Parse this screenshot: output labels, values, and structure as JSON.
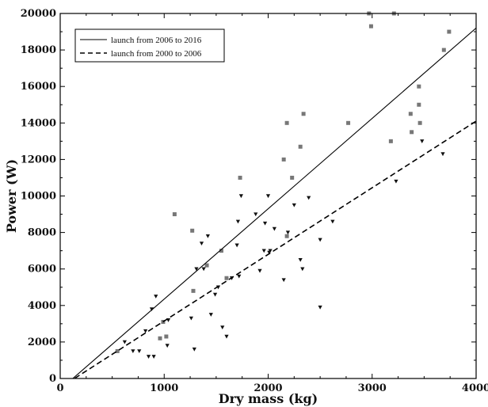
{
  "chart_data": {
    "type": "scatter",
    "title": "",
    "xlabel": "Dry mass (kg)",
    "ylabel": "Power (W)",
    "xlim": [
      0,
      4000
    ],
    "ylim": [
      0,
      20000
    ],
    "xticks": [
      0,
      1000,
      2000,
      3000,
      4000
    ],
    "yticks": [
      0,
      2000,
      4000,
      6000,
      8000,
      10000,
      12000,
      14000,
      16000,
      18000,
      20000
    ],
    "grid": false,
    "legend_position": "top-left",
    "series": [
      {
        "name": "launch from 2006 to 2016",
        "marker": "square",
        "color": "#777777",
        "points": [
          [
            550,
            1500
          ],
          [
            960,
            2200
          ],
          [
            990,
            3100
          ],
          [
            1020,
            2300
          ],
          [
            1100,
            9000
          ],
          [
            1270,
            8100
          ],
          [
            1280,
            4800
          ],
          [
            1410,
            6200
          ],
          [
            1550,
            7000
          ],
          [
            1600,
            5500
          ],
          [
            1730,
            11000
          ],
          [
            2150,
            12000
          ],
          [
            2180,
            7800
          ],
          [
            2180,
            14000
          ],
          [
            2230,
            11000
          ],
          [
            2310,
            12700
          ],
          [
            2340,
            14500
          ],
          [
            2770,
            14000
          ],
          [
            2970,
            20000
          ],
          [
            2990,
            19300
          ],
          [
            3180,
            13000
          ],
          [
            3210,
            20000
          ],
          [
            3370,
            14500
          ],
          [
            3380,
            13500
          ],
          [
            3450,
            16000
          ],
          [
            3450,
            15000
          ],
          [
            3460,
            14000
          ],
          [
            3690,
            18000
          ],
          [
            3740,
            19000
          ]
        ]
      },
      {
        "name": "launch from 2000 to 2006",
        "marker": "triangle-down",
        "color": "#111111",
        "points": [
          [
            620,
            2000
          ],
          [
            700,
            1500
          ],
          [
            760,
            1500
          ],
          [
            820,
            2600
          ],
          [
            850,
            1200
          ],
          [
            880,
            3800
          ],
          [
            900,
            1200
          ],
          [
            920,
            4500
          ],
          [
            1030,
            1800
          ],
          [
            1040,
            3200
          ],
          [
            1260,
            3300
          ],
          [
            1290,
            1600
          ],
          [
            1310,
            6000
          ],
          [
            1360,
            7400
          ],
          [
            1380,
            6000
          ],
          [
            1420,
            7800
          ],
          [
            1450,
            3500
          ],
          [
            1490,
            4600
          ],
          [
            1520,
            5000
          ],
          [
            1560,
            2800
          ],
          [
            1600,
            2300
          ],
          [
            1650,
            5500
          ],
          [
            1700,
            7300
          ],
          [
            1710,
            8600
          ],
          [
            1720,
            5600
          ],
          [
            1740,
            10000
          ],
          [
            1880,
            9000
          ],
          [
            1920,
            5900
          ],
          [
            1960,
            7000
          ],
          [
            1970,
            8500
          ],
          [
            2000,
            10000
          ],
          [
            2010,
            6900
          ],
          [
            2020,
            7000
          ],
          [
            2060,
            8200
          ],
          [
            2150,
            5400
          ],
          [
            2190,
            8000
          ],
          [
            2250,
            9500
          ],
          [
            2310,
            6500
          ],
          [
            2330,
            6000
          ],
          [
            2390,
            9900
          ],
          [
            2500,
            3900
          ],
          [
            2500,
            7600
          ],
          [
            2620,
            8600
          ],
          [
            3230,
            10800
          ],
          [
            3480,
            13000
          ],
          [
            3680,
            12300
          ]
        ]
      }
    ],
    "fit_lines": [
      {
        "name": "launch from 2006 to 2016",
        "style": "solid",
        "x": [
          0,
          4000
        ],
        "y": [
          -600,
          19200
        ]
      },
      {
        "name": "launch from 2000 to 2006",
        "style": "dashed",
        "x": [
          0,
          4000
        ],
        "y": [
          -500,
          14100
        ]
      }
    ]
  }
}
